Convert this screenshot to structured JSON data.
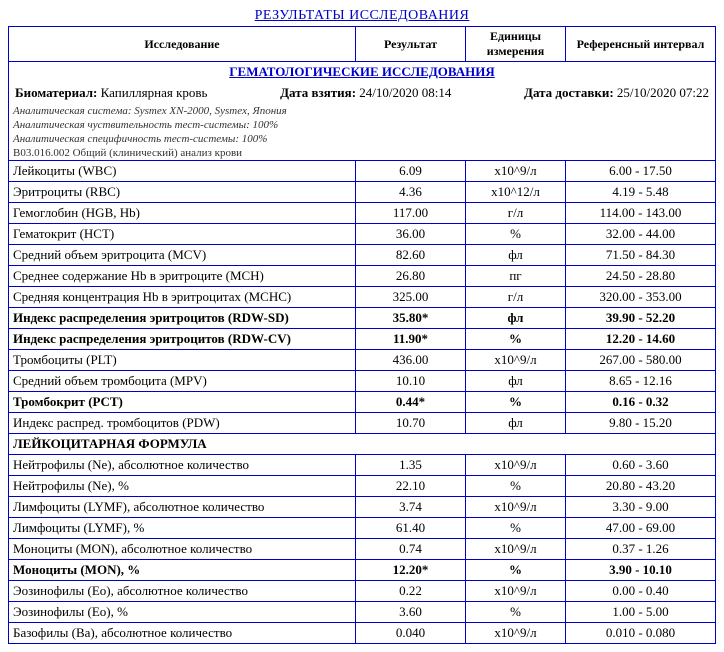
{
  "title": "РЕЗУЛЬТАТЫ ИССЛЕДОВАНИЯ",
  "headers": {
    "test": "Исследование",
    "result": "Результат",
    "units": "Единицы измерения",
    "ref": "Референсный интервал"
  },
  "section1": "ГЕМАТОЛОГИЧЕСКИЕ ИССЛЕДОВАНИЯ",
  "bio_label": "Биоматериал:",
  "bio_value": "Капиллярная кровь",
  "date_taken_label": "Дата взятия:",
  "date_taken": "24/10/2020 08:14",
  "date_deliv_label": "Дата доставки:",
  "date_deliv": "25/10/2020 07:22",
  "notes": [
    "Аналитическая система: Sysmex XN-2000, Sysmex, Япония",
    "Аналитическая чуствительность тест-системы: 100%",
    "Аналитическая специфичность тест-системы: 100%",
    "B03.016.002 Общий (клинический) анализ крови"
  ],
  "subhead": "ЛЕЙКОЦИТАРНАЯ ФОРМУЛА",
  "rows": [
    {
      "n": "Лейкоциты (WBC)",
      "r": "6.09",
      "u": "x10^9/л",
      "f": "6.00 - 17.50",
      "b": false
    },
    {
      "n": "Эритроциты (RBC)",
      "r": "4.36",
      "u": "x10^12/л",
      "f": "4.19 - 5.48",
      "b": false
    },
    {
      "n": "Гемоглобин (HGB, Hb)",
      "r": "117.00",
      "u": "г/л",
      "f": "114.00 - 143.00",
      "b": false
    },
    {
      "n": "Гематокрит (HCT)",
      "r": "36.00",
      "u": "%",
      "f": "32.00 - 44.00",
      "b": false
    },
    {
      "n": "Средний объем эритроцита (MCV)",
      "r": "82.60",
      "u": "фл",
      "f": "71.50 - 84.30",
      "b": false
    },
    {
      "n": "Среднее содержание Hb в эритроците (MCH)",
      "r": "26.80",
      "u": "пг",
      "f": "24.50 - 28.80",
      "b": false
    },
    {
      "n": "Средняя концентрация Hb в эритроцитах (MCHC)",
      "r": "325.00",
      "u": "г/л",
      "f": "320.00 - 353.00",
      "b": false
    },
    {
      "n": "Индекс распределения эритроцитов (RDW-SD)",
      "r": "35.80*",
      "u": "фл",
      "f": "39.90 - 52.20",
      "b": true
    },
    {
      "n": "Индекс распределения эритроцитов (RDW-CV)",
      "r": "11.90*",
      "u": "%",
      "f": "12.20 - 14.60",
      "b": true
    },
    {
      "n": "Тромбоциты (PLT)",
      "r": "436.00",
      "u": "x10^9/л",
      "f": "267.00 - 580.00",
      "b": false
    },
    {
      "n": "Средний объем тромбоцита (MPV)",
      "r": "10.10",
      "u": "фл",
      "f": "8.65 - 12.16",
      "b": false
    },
    {
      "n": "Тромбокрит (PCT)",
      "r": "0.44*",
      "u": "%",
      "f": "0.16 - 0.32",
      "b": true
    },
    {
      "n": "Индекс распред. тромбоцитов (PDW)",
      "r": "10.70",
      "u": "фл",
      "f": "9.80 - 15.20",
      "b": false
    }
  ],
  "rows2": [
    {
      "n": "Нейтрофилы (Ne), абсолютное количество",
      "r": "1.35",
      "u": "x10^9/л",
      "f": "0.60 - 3.60",
      "b": false
    },
    {
      "n": "Нейтрофилы (Ne), %",
      "r": "22.10",
      "u": "%",
      "f": "20.80 - 43.20",
      "b": false
    },
    {
      "n": "Лимфоциты (LYMF), абсолютное количество",
      "r": "3.74",
      "u": "x10^9/л",
      "f": "3.30 - 9.00",
      "b": false
    },
    {
      "n": "Лимфоциты (LYMF), %",
      "r": "61.40",
      "u": "%",
      "f": "47.00 - 69.00",
      "b": false
    },
    {
      "n": "Моноциты (MON), абсолютное количество",
      "r": "0.74",
      "u": "x10^9/л",
      "f": "0.37 - 1.26",
      "b": false
    },
    {
      "n": "Моноциты (MON), %",
      "r": "12.20*",
      "u": "%",
      "f": "3.90 - 10.10",
      "b": true
    },
    {
      "n": "Эозинофилы (Eo), абсолютное количество",
      "r": "0.22",
      "u": "x10^9/л",
      "f": "0.00 - 0.40",
      "b": false
    },
    {
      "n": "Эозинофилы (Eo), %",
      "r": "3.60",
      "u": "%",
      "f": "1.00 - 5.00",
      "b": false
    },
    {
      "n": "Базофилы (Ba), абсолютное количество",
      "r": "0.040",
      "u": "x10^9/л",
      "f": "0.010 - 0.080",
      "b": false
    }
  ]
}
